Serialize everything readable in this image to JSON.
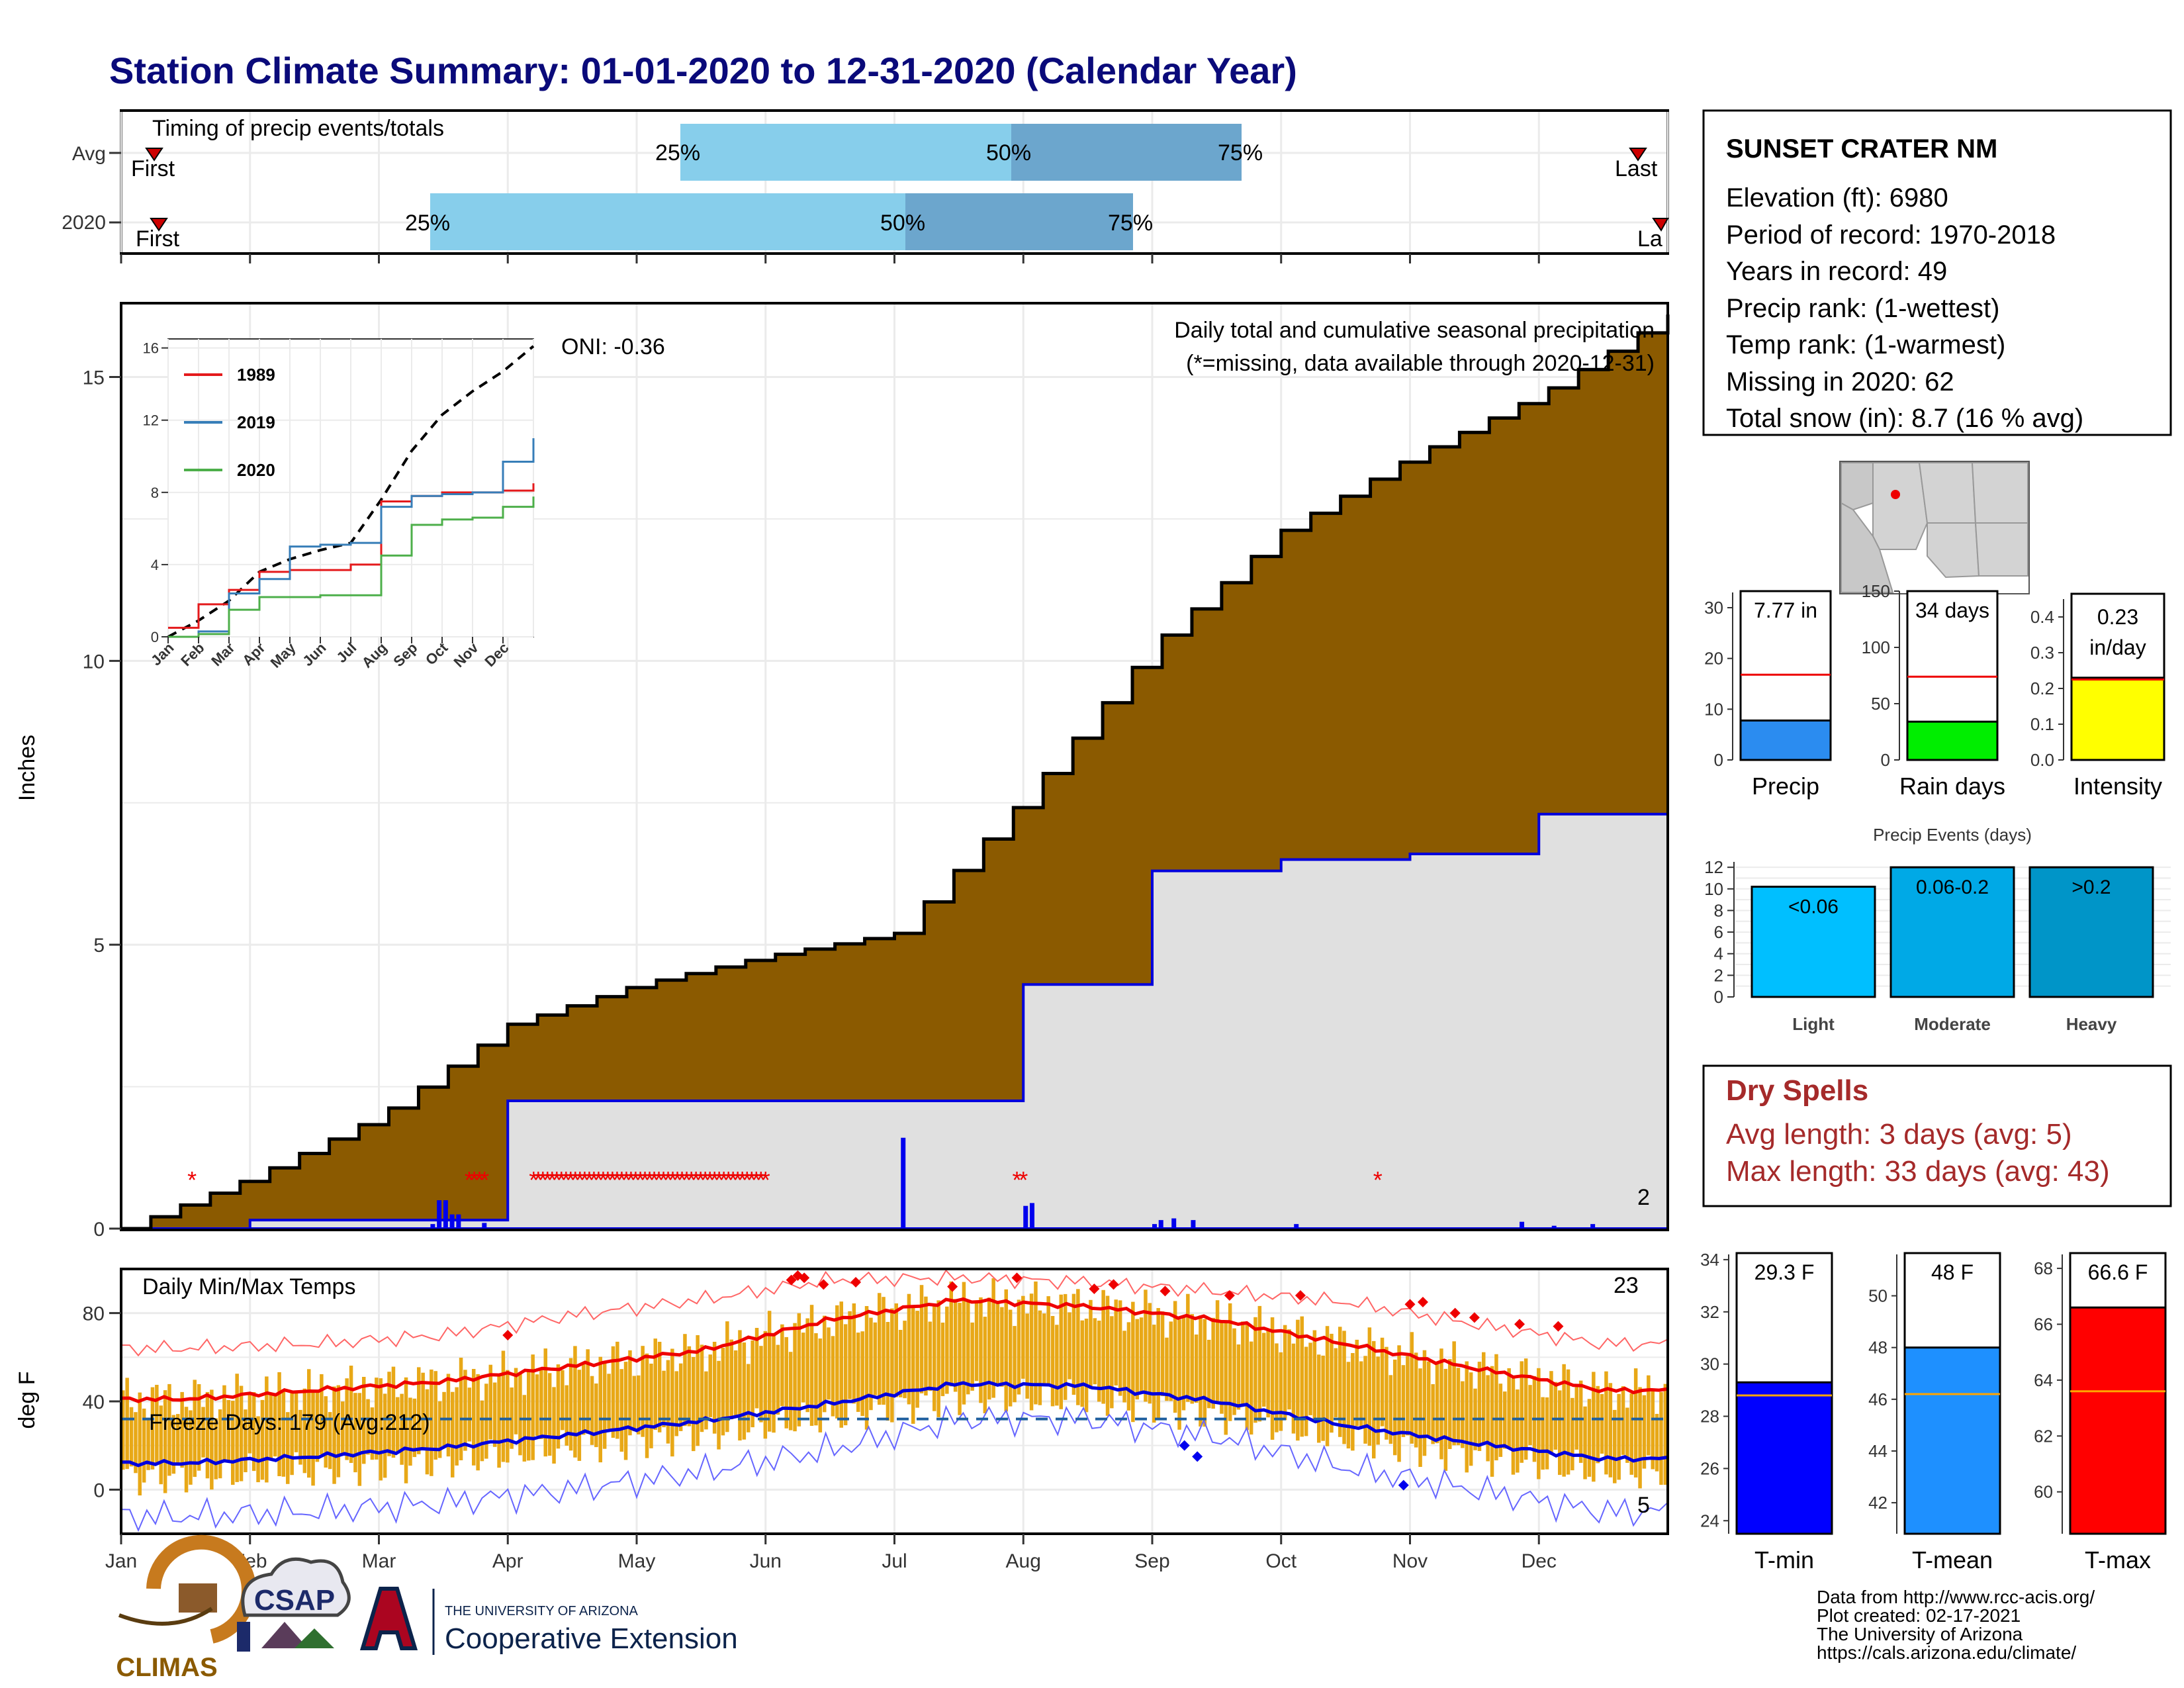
{
  "title": "Station Climate Summary: 01-01-2020 to 12-31-2020 (Calendar Year)",
  "timing": {
    "label": "Timing of precip events/totals",
    "rows": [
      "Avg",
      "2020"
    ],
    "first_label": "First",
    "last_label": "Last",
    "last_label_clipped": "La",
    "pct_labels": [
      "25%",
      "50%",
      "75%"
    ]
  },
  "main": {
    "ylabel": "Inches",
    "oni_label": "ONI: -0.36",
    "desc_line1": "Daily total and cumulative seasonal precipitation",
    "desc_line2": "(*=missing, data available through 2020-12-31)",
    "yticks": [
      "0",
      "5",
      "10",
      "15"
    ],
    "corner_count": "2"
  },
  "inset": {
    "series": [
      {
        "name": "1989",
        "color": "#e41a1c"
      },
      {
        "name": "2019",
        "color": "#377eb8"
      },
      {
        "name": "2020",
        "color": "#4daf4a"
      }
    ],
    "yticks": [
      "0",
      "4",
      "8",
      "12",
      "16"
    ],
    "xticks": [
      "Jan",
      "Feb",
      "Mar",
      "Apr",
      "May",
      "Jun",
      "Jul",
      "Aug",
      "Sep",
      "Oct",
      "Nov",
      "Dec"
    ]
  },
  "temps": {
    "label": "Daily Min/Max Temps",
    "ylabel": "deg F",
    "freeze_label": "Freeze Days: 179 (Avg:212)",
    "record_high_count": "23",
    "record_low_count": "5",
    "yticks": [
      "0",
      "40",
      "80"
    ]
  },
  "months": [
    "Jan",
    "Feb",
    "Mar",
    "Apr",
    "May",
    "Jun",
    "Jul",
    "Aug",
    "Sep",
    "Oct",
    "Nov",
    "Dec"
  ],
  "station": {
    "name": "SUNSET CRATER NM",
    "lines": [
      "Elevation (ft): 6980",
      "Period of record: 1970-2018",
      "Years in record: 49",
      "Precip rank:  (1-wettest)",
      "Temp rank:  (1-warmest)",
      "Missing in 2020: 62",
      "Total snow (in): 8.7 (16 % avg)"
    ]
  },
  "minibars": {
    "precip": {
      "value_label": "7.77 in",
      "name": "Precip",
      "yticks": [
        "0",
        "10",
        "20",
        "30"
      ]
    },
    "raindays": {
      "value_label": "34 days",
      "name": "Rain days",
      "yticks": [
        "0",
        "50",
        "100",
        "150"
      ]
    },
    "intensity": {
      "value_label1": "0.23",
      "value_label2": "in/day",
      "name": "Intensity",
      "yticks": [
        "0.0",
        "0.1",
        "0.2",
        "0.3",
        "0.4"
      ]
    }
  },
  "events": {
    "title": "Precip Events (days)",
    "yticks": [
      "0",
      "2",
      "4",
      "6",
      "8",
      "10",
      "12"
    ],
    "bars": [
      {
        "cat": "Light",
        "label": "<0.06",
        "value": 10.2
      },
      {
        "cat": "Moderate",
        "label": "0.06-0.2",
        "value": 12
      },
      {
        "cat": "Heavy",
        "label": ">0.2",
        "value": 12
      }
    ]
  },
  "dry_spells": {
    "title": "Dry Spells",
    "line1": "Avg length: 3 days (avg: 5)",
    "line2": "Max length: 33 days (avg: 43)"
  },
  "tempbars": {
    "tmin": {
      "value_label": "29.3 F",
      "name": "T-min",
      "yticks": [
        "24",
        "26",
        "28",
        "30",
        "32",
        "34"
      ]
    },
    "tmean": {
      "value_label": "48 F",
      "name": "T-mean",
      "yticks": [
        "42",
        "44",
        "46",
        "48",
        "50"
      ]
    },
    "tmax": {
      "value_label": "66.6 F",
      "name": "T-max",
      "yticks": [
        "60",
        "62",
        "64",
        "66",
        "68"
      ]
    }
  },
  "footer": {
    "lines": [
      "Data from http://www.rcc-acis.org/",
      "Plot created: 02-17-2021",
      "The University of Arizona",
      "https://cals.arizona.edu/climate/"
    ],
    "logo_climas": "CLIMAS",
    "logo_csap": "CSAP",
    "logo_ua_top": "THE UNIVERSITY OF ARIZONA",
    "logo_ua_bottom": "Cooperative Extension"
  },
  "chart_data": [
    {
      "type": "area",
      "title": "Daily total and cumulative seasonal precipitation",
      "ylabel": "Inches",
      "ylim": [
        0,
        16.3
      ],
      "x": [
        "Jan",
        "Feb",
        "Mar",
        "Apr",
        "May",
        "Jun",
        "Jul",
        "Aug",
        "Sep",
        "Oct",
        "Nov",
        "Dec",
        "Dec 31"
      ],
      "series": [
        {
          "values": [
            0,
            0.9,
            2.0,
            3.6,
            4.3,
            4.8,
            5.2,
            7.6,
            10.3,
            12.3,
            13.6,
            14.7,
            16.1
          ]
        },
        {
          "values": [
            0,
            0.15,
            0.15,
            2.25,
            2.25,
            2.25,
            2.25,
            4.3,
            6.3,
            6.5,
            6.6,
            7.3,
            7.77
          ]
        }
      ]
    },
    {
      "type": "line",
      "x": [
        "Jan",
        "Feb",
        "Mar",
        "Apr",
        "May",
        "Jun",
        "Jul",
        "Aug",
        "Sep",
        "Oct",
        "Nov",
        "Dec",
        "Dec 31"
      ],
      "ylim": [
        0,
        16
      ],
      "series": [
        {
          "name": "1989",
          "values": [
            0.5,
            1.8,
            2.6,
            3.6,
            3.7,
            3.7,
            4.0,
            7.5,
            7.8,
            8.0,
            8.0,
            8.1,
            8.5
          ]
        },
        {
          "name": "2019",
          "values": [
            0,
            0.3,
            2.4,
            3.2,
            5.0,
            5.1,
            5.2,
            7.2,
            7.8,
            7.9,
            8.0,
            9.7,
            11.0
          ]
        },
        {
          "name": "2020",
          "values": [
            0,
            0.15,
            1.5,
            2.2,
            2.2,
            2.3,
            2.3,
            4.5,
            6.2,
            6.5,
            6.6,
            7.2,
            7.77
          ]
        }
      ]
    },
    {
      "type": "line",
      "title": "Daily Min/Max Temps",
      "ylabel": "deg F",
      "ylim": [
        -20,
        100
      ],
      "x": [
        "Jan",
        "Feb",
        "Mar",
        "Apr",
        "May",
        "Jun",
        "Jul",
        "Aug",
        "Sep",
        "Oct",
        "Nov",
        "Dec"
      ],
      "series": [
        {
          "values": [
            41,
            45,
            49,
            56,
            63,
            77,
            86,
            83,
            77,
            66,
            55,
            45
          ]
        },
        {
          "values": [
            12,
            15,
            19,
            25,
            31,
            39,
            48,
            47,
            40,
            29,
            21,
            14
          ]
        },
        {
          "values": [
            64,
            66,
            70,
            79,
            86,
            95,
            96,
            94,
            90,
            85,
            75,
            66
          ]
        },
        {
          "values": [
            -12,
            -10,
            -6,
            0,
            8,
            18,
            32,
            32,
            24,
            10,
            0,
            -10
          ]
        }
      ]
    },
    {
      "type": "bar",
      "categories": [
        "Precip"
      ],
      "values": [
        7.77
      ],
      "ylim": [
        0,
        33
      ]
    },
    {
      "type": "bar",
      "categories": [
        "Rain days"
      ],
      "values": [
        34
      ],
      "ylim": [
        0,
        150
      ]
    },
    {
      "type": "bar",
      "categories": [
        "Intensity"
      ],
      "values": [
        0.23
      ],
      "ylim": [
        0,
        0.45
      ]
    },
    {
      "type": "bar",
      "title": "Precip Events (days)",
      "categories": [
        "Light",
        "Moderate",
        "Heavy"
      ],
      "values": [
        10.2,
        12,
        12
      ],
      "ylim": [
        0,
        12.5
      ]
    },
    {
      "type": "bar",
      "categories": [
        "T-min"
      ],
      "values": [
        29.3
      ],
      "ylim": [
        23.5,
        34.2
      ]
    },
    {
      "type": "bar",
      "categories": [
        "T-mean"
      ],
      "values": [
        48
      ],
      "ylim": [
        40.8,
        51.6
      ]
    },
    {
      "type": "bar",
      "categories": [
        "T-max"
      ],
      "values": [
        66.6
      ],
      "ylim": [
        58.5,
        68.5
      ]
    }
  ]
}
